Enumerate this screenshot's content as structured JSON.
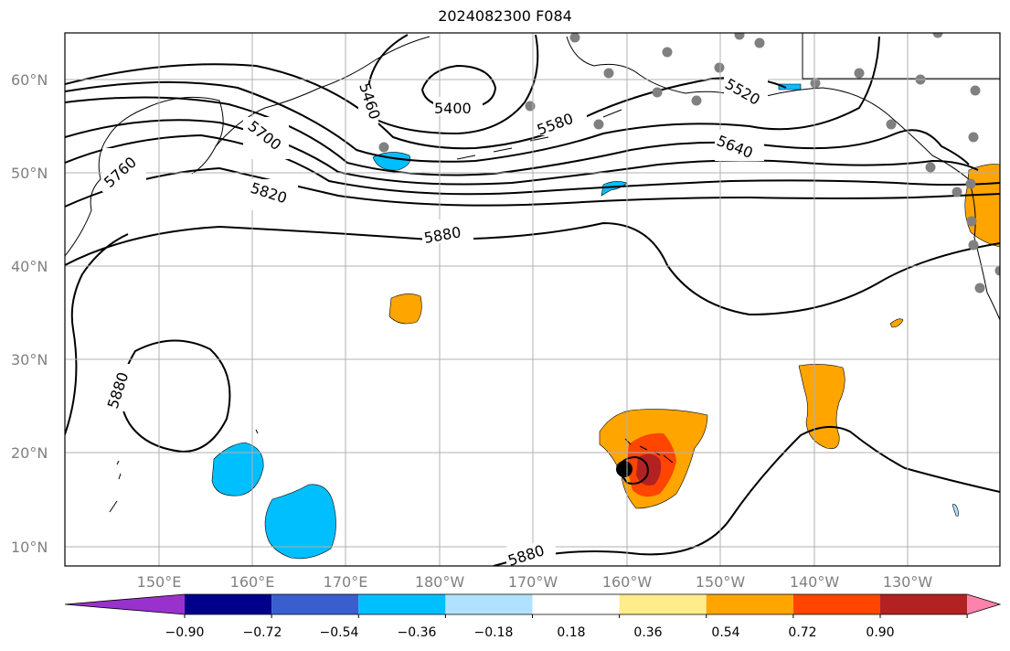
{
  "title": "2024082300 F084",
  "map": {
    "lat_labels": [
      "60°N",
      "50°N",
      "40°N",
      "30°N",
      "20°N",
      "10°N"
    ],
    "lon_labels": [
      "150°E",
      "160°E",
      "170°E",
      "180°W",
      "170°W",
      "160°W",
      "150°W",
      "140°W",
      "130°W"
    ],
    "contour_labels": [
      "5400",
      "5460",
      "5520",
      "5580",
      "5640",
      "5700",
      "5760",
      "5820",
      "5880",
      "5880",
      "5880"
    ],
    "grid": true
  },
  "colorbar": {
    "ticks": [
      "−0.90",
      "−0.72",
      "−0.54",
      "−0.36",
      "−0.18",
      "0.18",
      "0.36",
      "0.54",
      "0.72",
      "0.90"
    ],
    "colors": [
      "#9932cc",
      "#00008b",
      "#3a5fcd",
      "#00bfff",
      "#b0e2ff",
      "#ffffff",
      "#ffec8b",
      "#ffa500",
      "#ff4500",
      "#b22222",
      "#ff82ab"
    ]
  }
}
